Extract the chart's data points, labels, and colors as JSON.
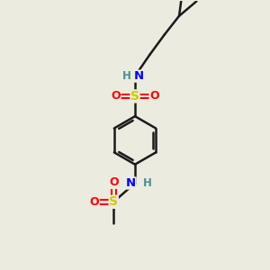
{
  "bg_color": "#ebebdf",
  "bond_color": "#1a1a1a",
  "atom_colors": {
    "N": "#0000ff",
    "S": "#cccc00",
    "O": "#ff0000",
    "H": "#4a9090",
    "C": "#1a1a1a"
  }
}
